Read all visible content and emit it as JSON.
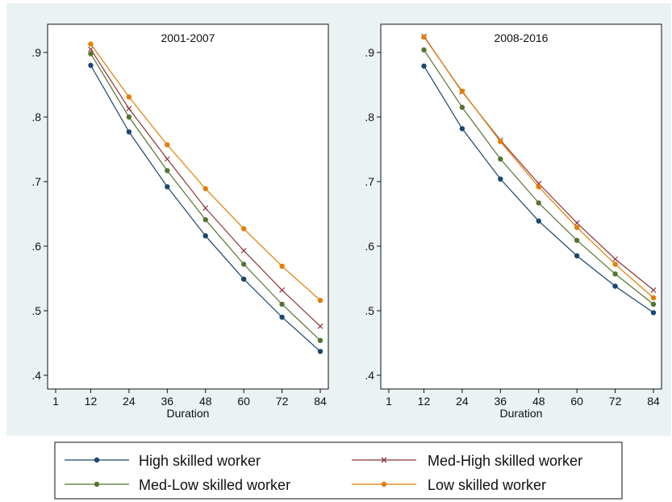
{
  "chart_data": [
    {
      "type": "line",
      "title": "2001-2007",
      "xlabel": "Duration",
      "ylabel": "",
      "x_ticks": [
        "1",
        "12",
        "24",
        "36",
        "48",
        "60",
        "72",
        "84"
      ],
      "y_ticks": [
        ".4",
        ".5",
        ".6",
        ".7",
        ".8",
        ".9"
      ],
      "xlim": [
        1,
        84
      ],
      "ylim": [
        0.4,
        0.9
      ],
      "grid": false,
      "x": [
        12,
        24,
        36,
        48,
        60,
        72,
        84
      ],
      "series": [
        {
          "name": "High skilled worker",
          "values": [
            0.88,
            0.777,
            0.692,
            0.616,
            0.549,
            0.49,
            0.437
          ]
        },
        {
          "name": "Med-High skilled worker",
          "values": [
            0.905,
            0.813,
            0.735,
            0.659,
            0.593,
            0.532,
            0.476
          ]
        },
        {
          "name": "Med-Low skilled worker",
          "values": [
            0.898,
            0.8,
            0.717,
            0.641,
            0.572,
            0.51,
            0.454
          ]
        },
        {
          "name": "Low skilled worker",
          "values": [
            0.913,
            0.831,
            0.757,
            0.689,
            0.627,
            0.569,
            0.516
          ]
        }
      ]
    },
    {
      "type": "line",
      "title": "2008-2016",
      "xlabel": "Duration",
      "ylabel": "",
      "x_ticks": [
        "1",
        "12",
        "24",
        "36",
        "48",
        "60",
        "72",
        "84"
      ],
      "y_ticks": [
        ".4",
        ".5",
        ".6",
        ".7",
        ".8",
        ".9"
      ],
      "xlim": [
        1,
        84
      ],
      "ylim": [
        0.4,
        0.9
      ],
      "grid": false,
      "x": [
        12,
        24,
        36,
        48,
        60,
        72,
        84
      ],
      "series": [
        {
          "name": "High skilled worker",
          "values": [
            0.879,
            0.782,
            0.704,
            0.639,
            0.585,
            0.538,
            0.497
          ]
        },
        {
          "name": "Med-High skilled worker",
          "values": [
            0.925,
            0.839,
            0.764,
            0.697,
            0.636,
            0.58,
            0.532
          ]
        },
        {
          "name": "Med-Low skilled worker",
          "values": [
            0.904,
            0.815,
            0.735,
            0.667,
            0.609,
            0.557,
            0.51
          ]
        },
        {
          "name": "Low skilled worker",
          "values": [
            0.924,
            0.84,
            0.762,
            0.692,
            0.629,
            0.572,
            0.52
          ]
        }
      ]
    }
  ],
  "legend": {
    "placement": "bottom",
    "items": [
      {
        "name": "High skilled worker",
        "color": "#1a476f",
        "marker": "circle"
      },
      {
        "name": "Med-High skilled worker",
        "color": "#90353b",
        "marker": "x"
      },
      {
        "name": "Med-Low skilled worker",
        "color": "#55752f",
        "marker": "circle"
      },
      {
        "name": "Low skilled worker",
        "color": "#e37e00",
        "marker": "circle"
      }
    ]
  },
  "colors": {
    "panel_background": "#eaf2f3",
    "plot_background": "#ffffff",
    "High skilled worker": "#1a476f",
    "Med-High skilled worker": "#90353b",
    "Med-Low skilled worker": "#55752f",
    "Low skilled worker": "#e37e00"
  }
}
